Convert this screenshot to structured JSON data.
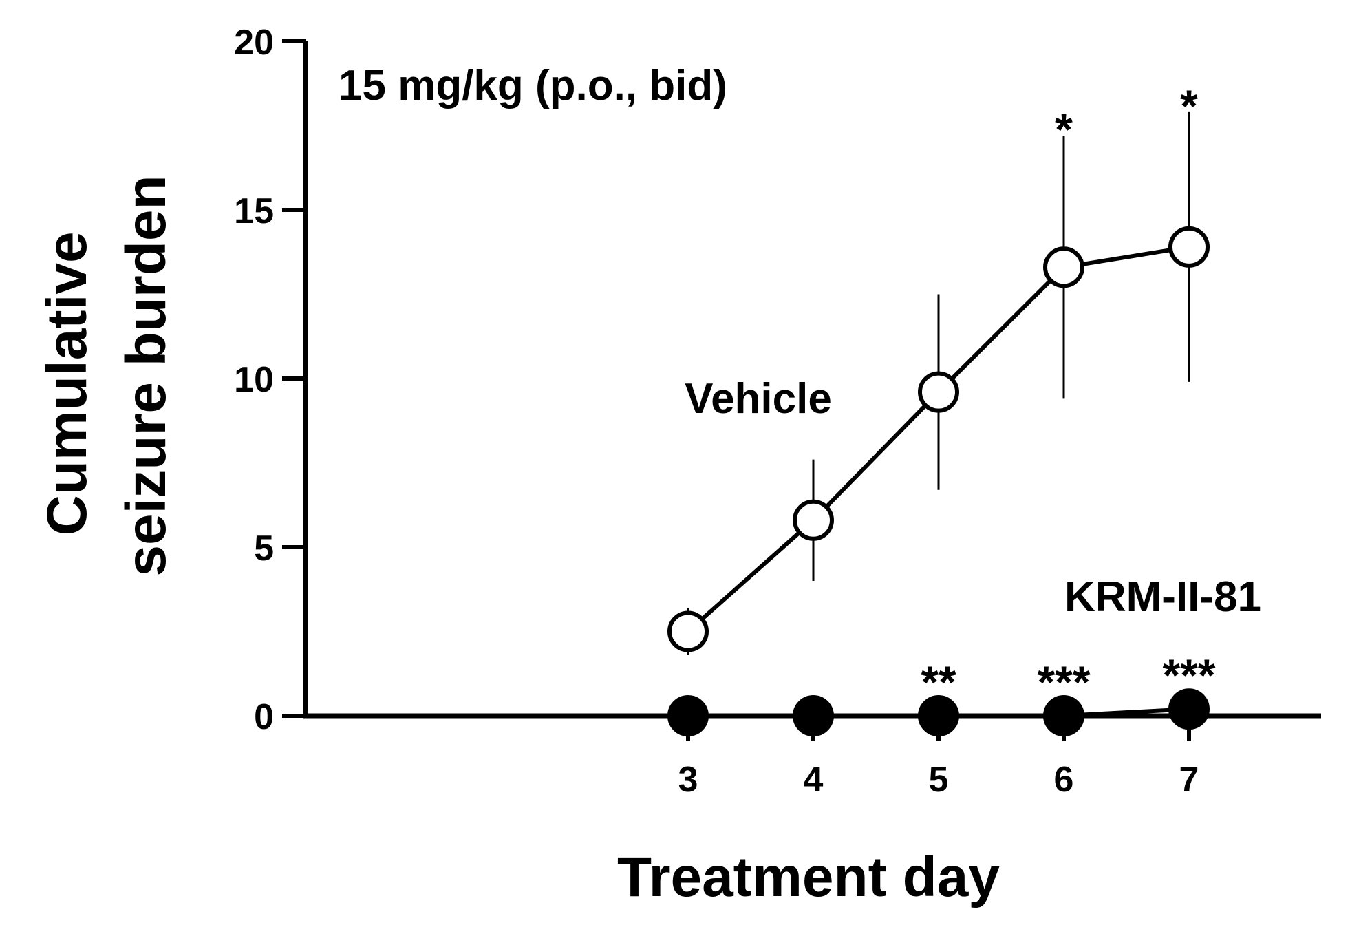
{
  "chart_data": {
    "type": "line",
    "title": "",
    "annotation": "15 mg/kg (p.o., bid)",
    "xlabel": "Treatment day",
    "ylabel_lines": [
      "Cumulative",
      "seizure burden"
    ],
    "x": [
      3,
      4,
      5,
      6,
      7
    ],
    "xticks": [
      "3",
      "4",
      "5",
      "6",
      "7"
    ],
    "yticks": [
      "0",
      "5",
      "10",
      "15",
      "20"
    ],
    "ylim": [
      0,
      20
    ],
    "grid": false,
    "series": [
      {
        "name": "Vehicle",
        "marker": "open-circle",
        "values": [
          2.5,
          5.8,
          9.6,
          13.3,
          13.9
        ],
        "error": [
          0.7,
          1.8,
          2.9,
          3.9,
          4.0
        ],
        "significance": [
          "",
          "",
          "",
          "*",
          "*"
        ]
      },
      {
        "name": "KRM-II-81",
        "marker": "filled-circle",
        "values": [
          0,
          0,
          0,
          0,
          0.2
        ],
        "error": [
          0,
          0,
          0,
          0,
          0
        ],
        "significance": [
          "",
          "",
          "**",
          "***",
          "***"
        ]
      }
    ],
    "colors": {
      "line": "#000000",
      "background": "#ffffff"
    }
  }
}
